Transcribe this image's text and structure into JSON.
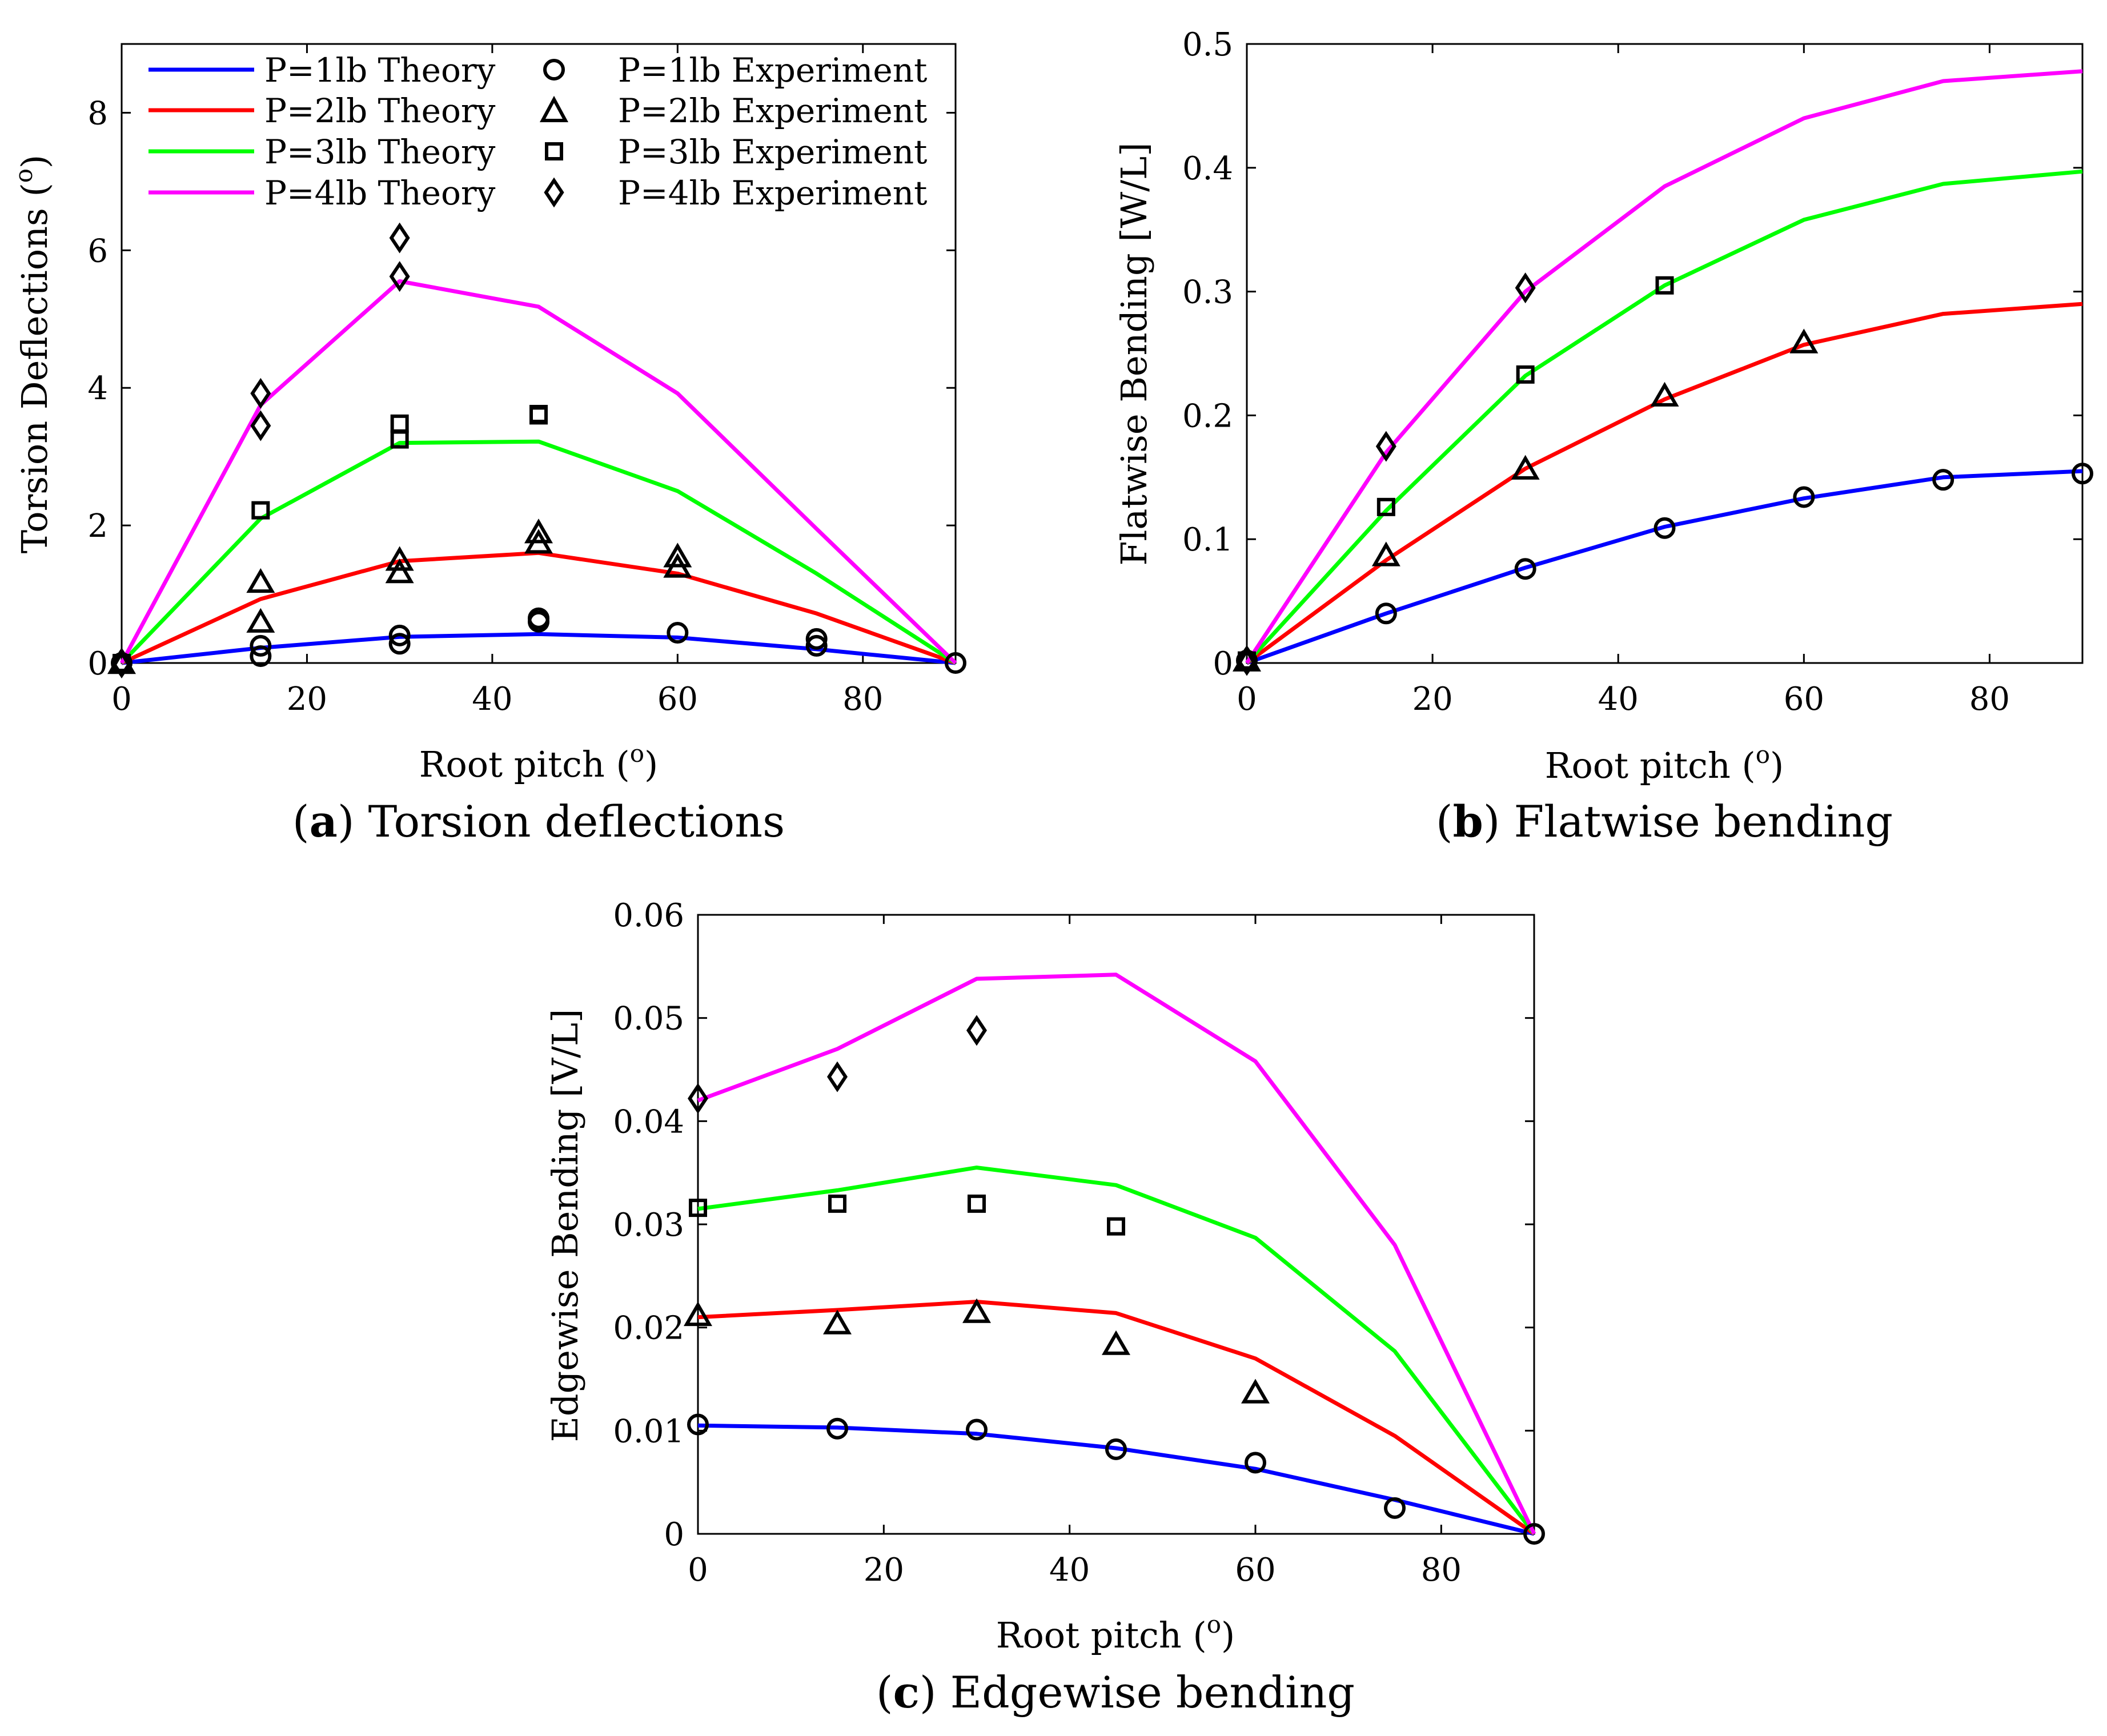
{
  "colors": {
    "p1": "#0000ff",
    "p2": "#ff0000",
    "p3": "#00ff00",
    "p4": "#ff00ff",
    "marker": "#000000"
  },
  "captions": {
    "a_letter": "a",
    "a_text": " Torsion deflections",
    "b_letter": "b",
    "b_text": " Flatwise bending",
    "c_letter": "c",
    "c_text": " Edgewise bending",
    "open_paren": "(",
    "close_paren": ")"
  },
  "legend": {
    "theory": [
      "P=1lb Theory",
      "P=2lb Theory",
      "P=3lb Theory",
      "P=4lb Theory"
    ],
    "experiment": [
      "P=1lb Experiment",
      "P=2lb Experiment",
      "P=3lb Experiment",
      "P=4lb Experiment"
    ],
    "markers": [
      "circle",
      "triangle",
      "square",
      "diamond"
    ],
    "placement": "top-left of panel a"
  },
  "chart_data": [
    {
      "id": "a",
      "type": "line",
      "title": "Torsion deflections",
      "xlabel": "Root pitch (",
      "xlabel_sup": "o",
      "xlabel_end": ")",
      "ylabel": "Torsion Deflections (",
      "ylabel_sup": "o",
      "ylabel_end": ")",
      "xlim": [
        0,
        90
      ],
      "ylim": [
        0,
        9
      ],
      "xticks": [
        0,
        20,
        40,
        60,
        80
      ],
      "xtick_labels": [
        "0",
        "20",
        "40",
        "60",
        "80"
      ],
      "yticks": [
        0,
        2,
        4,
        6,
        8
      ],
      "ytick_labels": [
        "0",
        "2",
        "4",
        "6",
        "8"
      ],
      "theory_x": [
        0,
        15,
        30,
        45,
        60,
        75,
        90
      ],
      "series": [
        {
          "name": "P=1lb Theory",
          "color": "#0000ff",
          "values": [
            0,
            0.22,
            0.38,
            0.42,
            0.37,
            0.2,
            0
          ]
        },
        {
          "name": "P=2lb Theory",
          "color": "#ff0000",
          "values": [
            0,
            0.93,
            1.48,
            1.6,
            1.3,
            0.72,
            0
          ]
        },
        {
          "name": "P=3lb Theory",
          "color": "#00ff00",
          "values": [
            0,
            2.1,
            3.2,
            3.22,
            2.5,
            1.3,
            0
          ]
        },
        {
          "name": "P=4lb Theory",
          "color": "#ff00ff",
          "values": [
            0,
            3.75,
            5.55,
            5.18,
            3.92,
            1.95,
            0
          ]
        }
      ],
      "experiments": [
        {
          "name": "P=1lb Experiment",
          "marker": "circle",
          "points": [
            [
              0,
              0
            ],
            [
              15,
              0.1
            ],
            [
              15,
              0.25
            ],
            [
              30,
              0.28
            ],
            [
              30,
              0.4
            ],
            [
              45,
              0.6
            ],
            [
              45,
              0.65
            ],
            [
              60,
              0.44
            ],
            [
              75,
              0.25
            ],
            [
              75,
              0.35
            ],
            [
              90,
              0
            ]
          ]
        },
        {
          "name": "P=2lb Experiment",
          "marker": "triangle",
          "points": [
            [
              0,
              0
            ],
            [
              15,
              0.6
            ],
            [
              15,
              1.18
            ],
            [
              30,
              1.32
            ],
            [
              30,
              1.5
            ],
            [
              45,
              1.75
            ],
            [
              45,
              1.9
            ],
            [
              60,
              1.4
            ],
            [
              60,
              1.55
            ]
          ]
        },
        {
          "name": "P=3lb Experiment",
          "marker": "square",
          "points": [
            [
              0,
              0
            ],
            [
              15,
              2.22
            ],
            [
              30,
              3.25
            ],
            [
              30,
              3.48
            ],
            [
              45,
              3.6
            ],
            [
              45,
              3.62
            ]
          ]
        },
        {
          "name": "P=4lb Experiment",
          "marker": "diamond",
          "points": [
            [
              0,
              0
            ],
            [
              15,
              3.45
            ],
            [
              15,
              3.92
            ],
            [
              30,
              5.62
            ],
            [
              30,
              6.18
            ]
          ]
        }
      ]
    },
    {
      "id": "b",
      "type": "line",
      "title": "Flatwise bending",
      "xlabel": "Root pitch (",
      "xlabel_sup": "o",
      "xlabel_end": ")",
      "ylabel": "Flatwise Bending [W/L]",
      "xlim": [
        0,
        90
      ],
      "ylim": [
        0,
        0.5
      ],
      "xticks": [
        0,
        20,
        40,
        60,
        80
      ],
      "xtick_labels": [
        "0",
        "20",
        "40",
        "60",
        "80"
      ],
      "yticks": [
        0,
        0.1,
        0.2,
        0.3,
        0.4,
        0.5
      ],
      "ytick_labels": [
        "0",
        "0.1",
        "0.2",
        "0.3",
        "0.4",
        "0.5"
      ],
      "theory_x": [
        0,
        15,
        30,
        45,
        60,
        75,
        90
      ],
      "series": [
        {
          "name": "P=1lb Theory",
          "color": "#0000ff",
          "values": [
            0,
            0.04,
            0.077,
            0.11,
            0.133,
            0.15,
            0.155
          ]
        },
        {
          "name": "P=2lb Theory",
          "color": "#ff0000",
          "values": [
            0,
            0.083,
            0.157,
            0.213,
            0.257,
            0.282,
            0.29
          ]
        },
        {
          "name": "P=3lb Theory",
          "color": "#00ff00",
          "values": [
            0,
            0.123,
            0.232,
            0.305,
            0.358,
            0.387,
            0.397
          ]
        },
        {
          "name": "P=4lb Theory",
          "color": "#ff00ff",
          "values": [
            0,
            0.17,
            0.3,
            0.385,
            0.44,
            0.47,
            0.478
          ]
        }
      ],
      "experiments": [
        {
          "name": "P=1lb Experiment",
          "marker": "circle",
          "points": [
            [
              0,
              0.002
            ],
            [
              15,
              0.04
            ],
            [
              30,
              0.076
            ],
            [
              45,
              0.109
            ],
            [
              60,
              0.134
            ],
            [
              75,
              0.148
            ],
            [
              90,
              0.153
            ]
          ]
        },
        {
          "name": "P=2lb Experiment",
          "marker": "triangle",
          "points": [
            [
              0,
              0.002
            ],
            [
              15,
              0.087
            ],
            [
              30,
              0.157
            ],
            [
              45,
              0.216
            ],
            [
              60,
              0.259
            ]
          ]
        },
        {
          "name": "P=3lb Experiment",
          "marker": "square",
          "points": [
            [
              0,
              0.002
            ],
            [
              15,
              0.126
            ],
            [
              30,
              0.233
            ],
            [
              45,
              0.305
            ]
          ]
        },
        {
          "name": "P=4lb Experiment",
          "marker": "diamond",
          "points": [
            [
              0,
              0.002
            ],
            [
              15,
              0.175
            ],
            [
              30,
              0.303
            ]
          ]
        }
      ]
    },
    {
      "id": "c",
      "type": "line",
      "title": "Edgewise bending",
      "xlabel": "Root pitch (",
      "xlabel_sup": "o",
      "xlabel_end": ")",
      "ylabel": "Edgewise Bending [V/L]",
      "xlim": [
        0,
        90
      ],
      "ylim": [
        0,
        0.06
      ],
      "xticks": [
        0,
        20,
        40,
        60,
        80
      ],
      "xtick_labels": [
        "0",
        "20",
        "40",
        "60",
        "80"
      ],
      "yticks": [
        0,
        0.01,
        0.02,
        0.03,
        0.04,
        0.05,
        0.06
      ],
      "ytick_labels": [
        "0",
        "0.01",
        "0.02",
        "0.03",
        "0.04",
        "0.05",
        "0.06"
      ],
      "theory_x": [
        0,
        15,
        30,
        45,
        60,
        75,
        90
      ],
      "series": [
        {
          "name": "P=1lb Theory",
          "color": "#0000ff",
          "values": [
            0.0105,
            0.0103,
            0.0097,
            0.0083,
            0.0063,
            0.0033,
            0
          ]
        },
        {
          "name": "P=2lb Theory",
          "color": "#ff0000",
          "values": [
            0.021,
            0.0217,
            0.0225,
            0.0214,
            0.017,
            0.0095,
            0
          ]
        },
        {
          "name": "P=3lb Theory",
          "color": "#00ff00",
          "values": [
            0.0315,
            0.0333,
            0.0355,
            0.0338,
            0.0287,
            0.0177,
            0
          ]
        },
        {
          "name": "P=4lb Theory",
          "color": "#ff00ff",
          "values": [
            0.042,
            0.047,
            0.0538,
            0.0542,
            0.0458,
            0.028,
            0
          ]
        }
      ],
      "experiments": [
        {
          "name": "P=1lb Experiment",
          "marker": "circle",
          "points": [
            [
              0,
              0.0106
            ],
            [
              15,
              0.0102
            ],
            [
              30,
              0.0101
            ],
            [
              45,
              0.0082
            ],
            [
              60,
              0.0069
            ],
            [
              75,
              0.0025
            ],
            [
              90,
              0
            ]
          ]
        },
        {
          "name": "P=2lb Experiment",
          "marker": "triangle",
          "points": [
            [
              0,
              0.0212
            ],
            [
              15,
              0.0204
            ],
            [
              30,
              0.0215
            ],
            [
              45,
              0.0184
            ],
            [
              60,
              0.0137
            ]
          ]
        },
        {
          "name": "P=3lb Experiment",
          "marker": "square",
          "points": [
            [
              0,
              0.0316
            ],
            [
              15,
              0.032
            ],
            [
              30,
              0.032
            ],
            [
              45,
              0.0298
            ]
          ]
        },
        {
          "name": "P=4lb Experiment",
          "marker": "diamond",
          "points": [
            [
              0,
              0.0422
            ],
            [
              15,
              0.0443
            ],
            [
              30,
              0.0488
            ]
          ]
        }
      ]
    }
  ]
}
